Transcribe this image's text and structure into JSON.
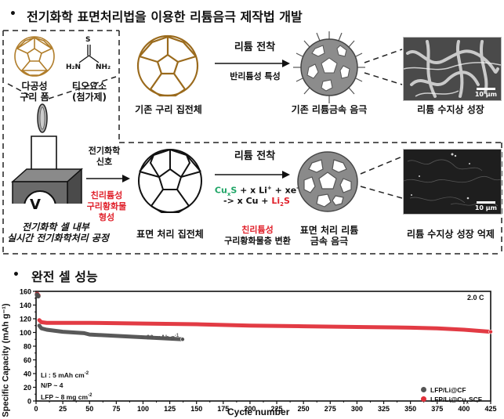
{
  "section1": {
    "bullet": "•",
    "title": "전기화학 표면처리법을 이용한 리튬음극 제작법 개발"
  },
  "left_box": {
    "copper_foam_label_line1": "다공성",
    "copper_foam_label_line2": "구리 폼",
    "thiourea_formula_top": "S",
    "thiourea_formula_left": "H₂N",
    "thiourea_formula_right": "NH₂",
    "thiourea_label_line1": "티오요소",
    "thiourea_label_line2": "(첨가제)",
    "voltmeter_symbol": "V",
    "cell_caption_line1": "전기화학 셀 내부",
    "cell_caption_line2": "실시간 전기화학처리 공정"
  },
  "top_row": {
    "collector_label": "기존 구리 집전체",
    "arrow_top_label": "리튬 전착",
    "arrow_bottom_label": "반리튬성 특성",
    "anode_label": "기존 리튬금속 음극",
    "sem_label": "리튬 수지상 성장",
    "sem_scale": "10 μm"
  },
  "bottom_row": {
    "signal_label_line1": "전기화학",
    "signal_label_line2": "신호",
    "formation_line1": "친리튬성",
    "formation_line2": "구리황화물",
    "formation_line3": "형성",
    "collector_label": "표면 처리 집전체",
    "arrow_top_label": "리튬 전착",
    "reaction_part1": "Cu",
    "reaction_part1_sub": "x",
    "reaction_part1b": "S",
    "reaction_part2": " + x Li",
    "reaction_part2_sup": "+",
    "reaction_part3": " + xe",
    "reaction_part3_sup": "-",
    "reaction_line2a": "-> x Cu + ",
    "reaction_line2b": "Li",
    "reaction_line2b_sub": "2",
    "reaction_line2c": "S",
    "conversion_line1": "친리튬성",
    "conversion_line2": "구리황화물층 변환",
    "anode_label_line1": "표면 처리 리튬",
    "anode_label_line2": "금속 음극",
    "sem_label": "리튬 수지상 성장 억제",
    "sem_scale": "10 μm"
  },
  "section2": {
    "bullet": "•",
    "title": "완전 셀 성능"
  },
  "chart_data": {
    "type": "scatter",
    "title": "",
    "xlabel": "Cycle number",
    "ylabel": "Specific Capacity (mAh g⁻¹)",
    "xlim": [
      0,
      425
    ],
    "ylim": [
      0,
      160
    ],
    "xticks": [
      0,
      25,
      50,
      75,
      100,
      125,
      150,
      175,
      200,
      225,
      250,
      275,
      300,
      325,
      350,
      375,
      400,
      425
    ],
    "yticks": [
      0,
      20,
      40,
      60,
      80,
      100,
      120,
      140,
      160
    ],
    "grid": false,
    "legend_position": "lower right",
    "annotations": {
      "rate": "2.0 C",
      "conditions": [
        "Li : 5 mAh cm⁻²",
        "N/P ~ 4",
        "LFP ~ 8 mg cm⁻²"
      ],
      "cf_end_note": "< 90 mAh g⁻¹"
    },
    "series": [
      {
        "name": "LFP/Li@CF",
        "color": "#505050",
        "x": [
          1,
          2,
          3,
          5,
          10,
          25,
          45,
          50,
          75,
          100,
          125,
          137
        ],
        "y": [
          155,
          153,
          110,
          106,
          104,
          101,
          99,
          97,
          95,
          93,
          91,
          90
        ]
      },
      {
        "name": "LFP/Li@CuₓSCF",
        "color": "#e0303a",
        "x": [
          1,
          2,
          3,
          5,
          10,
          50,
          100,
          150,
          200,
          250,
          300,
          350,
          375,
          400,
          425
        ],
        "y": [
          156,
          154,
          118,
          115,
          114,
          114,
          113,
          112,
          110,
          109,
          108,
          107,
          106,
          104,
          101
        ]
      }
    ]
  },
  "chart_labels": {
    "rate": "2.0 C",
    "cond1": "Li : 5 mAh cm",
    "cond1_sup": "-2",
    "cond2": "N/P ~ 4",
    "cond3": "LFP ~ 8 mg cm",
    "cond3_sup": "-2",
    "cf_note": "< 90 mAh g",
    "cf_note_sup": "-1",
    "legend1": "LFP/Li@CF",
    "legend2a": "LFP/Li@Cu",
    "legend2_sub": "x",
    "legend2b": "SCF",
    "xlabel": "Cycle number",
    "ylabel": "Specific Capacity (mAh g⁻¹)"
  }
}
